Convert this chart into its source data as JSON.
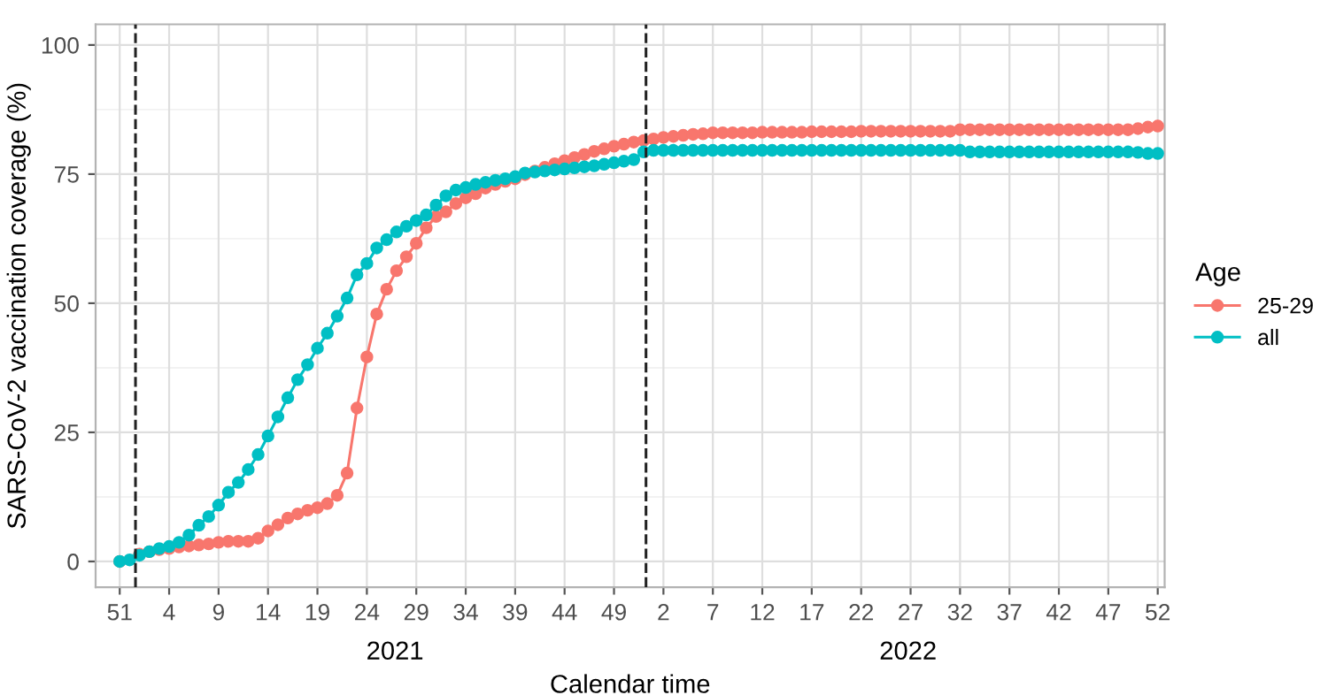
{
  "chart_data": {
    "type": "line",
    "xlabel": "Calendar time",
    "ylabel": "SARS-CoV-2 vaccination coverage (%)",
    "legend_title": "Age",
    "categories": [
      "51",
      null,
      null,
      null,
      null,
      "4",
      null,
      null,
      null,
      null,
      "9",
      null,
      null,
      null,
      null,
      "14",
      null,
      null,
      null,
      null,
      "19",
      null,
      null,
      null,
      null,
      "24",
      null,
      null,
      null,
      null,
      "29",
      null,
      null,
      null,
      null,
      "34",
      null,
      null,
      null,
      null,
      "39",
      null,
      null,
      null,
      null,
      "44",
      null,
      null,
      null,
      null,
      "49",
      null,
      null,
      null,
      null,
      "2",
      null,
      null,
      null,
      null,
      "7",
      null,
      null,
      null,
      null,
      "12",
      null,
      null,
      null,
      null,
      "17",
      null,
      null,
      null,
      null,
      "22",
      null,
      null,
      null,
      null,
      "27",
      null,
      null,
      null,
      null,
      "32",
      null,
      null,
      null,
      null,
      "37",
      null,
      null,
      null,
      null,
      "42",
      null,
      null,
      null,
      null,
      "47",
      null,
      null,
      null,
      null,
      "52"
    ],
    "series": [
      {
        "name": "25-29",
        "color": "#f8766d",
        "values": [
          0,
          null,
          1.4,
          1.9,
          2.3,
          2.5,
          2.8,
          3.0,
          3.2,
          3.4,
          3.7,
          3.9,
          3.9,
          3.9,
          4.5,
          5.9,
          7.1,
          8.4,
          9.2,
          9.9,
          10.4,
          11.2,
          12.8,
          17.1,
          29.7,
          39.6,
          47.9,
          52.7,
          56.3,
          59,
          61.6,
          64.6,
          66.8,
          67.7,
          69.3,
          70.4,
          71.2,
          72.3,
          73,
          73.6,
          74.1,
          74.9,
          75.6,
          76.3,
          77,
          77.6,
          78.2,
          78.8,
          79.4,
          79.9,
          80.4,
          80.8,
          81.2,
          81.5,
          81.8,
          82.1,
          82.3,
          82.5,
          82.7,
          82.8,
          83.0,
          83.0,
          83.0,
          83.0,
          83.0,
          83.1,
          83.1,
          83.1,
          83.1,
          83.1,
          83.2,
          83.2,
          83.2,
          83.2,
          83.2,
          83.3,
          83.3,
          83.3,
          83.3,
          83.3,
          83.3,
          83.3,
          83.3,
          83.3,
          83.3,
          83.6,
          83.6,
          83.6,
          83.6,
          83.6,
          83.6,
          83.6,
          83.6,
          83.6,
          83.6,
          83.6,
          83.6,
          83.6,
          83.6,
          83.6,
          83.6,
          83.6,
          83.6,
          83.8,
          84.1,
          84.3
        ]
      },
      {
        "name": "all",
        "color": "#00bfc4",
        "values": [
          0,
          0.3,
          1.2,
          1.9,
          2.5,
          2.9,
          3.7,
          5.1,
          7.0,
          8.7,
          10.9,
          13.4,
          15.3,
          17.8,
          20.7,
          24.3,
          28,
          31.7,
          35.2,
          38.1,
          41.3,
          44.2,
          47.5,
          51,
          55.5,
          57.7,
          60.7,
          62.3,
          63.8,
          64.9,
          66,
          67.1,
          69,
          70.8,
          71.9,
          72.4,
          73,
          73.4,
          73.8,
          74.1,
          74.5,
          75.2,
          75.4,
          75.6,
          75.8,
          76.0,
          76.2,
          76.4,
          76.6,
          76.9,
          77.2,
          77.5,
          77.8,
          79.3,
          79.6,
          79.6,
          79.6,
          79.6,
          79.6,
          79.6,
          79.6,
          79.6,
          79.6,
          79.6,
          79.6,
          79.6,
          79.6,
          79.6,
          79.6,
          79.6,
          79.6,
          79.6,
          79.6,
          79.6,
          79.6,
          79.6,
          79.6,
          79.6,
          79.6,
          79.6,
          79.6,
          79.6,
          79.6,
          79.6,
          79.6,
          79.6,
          79.3,
          79.3,
          79.3,
          79.3,
          79.3,
          79.3,
          79.3,
          79.3,
          79.3,
          79.3,
          79.3,
          79.3,
          79.3,
          79.3,
          79.3,
          79.3,
          79.3,
          79.2,
          79.0,
          79.0
        ]
      }
    ],
    "ylim": [
      -5,
      104
    ],
    "yticks": [
      0,
      25,
      50,
      75,
      100
    ],
    "annotations": [
      "2021",
      "2022"
    ],
    "grid": true,
    "legend": "right",
    "marker": "circle",
    "line_style": "solid"
  }
}
